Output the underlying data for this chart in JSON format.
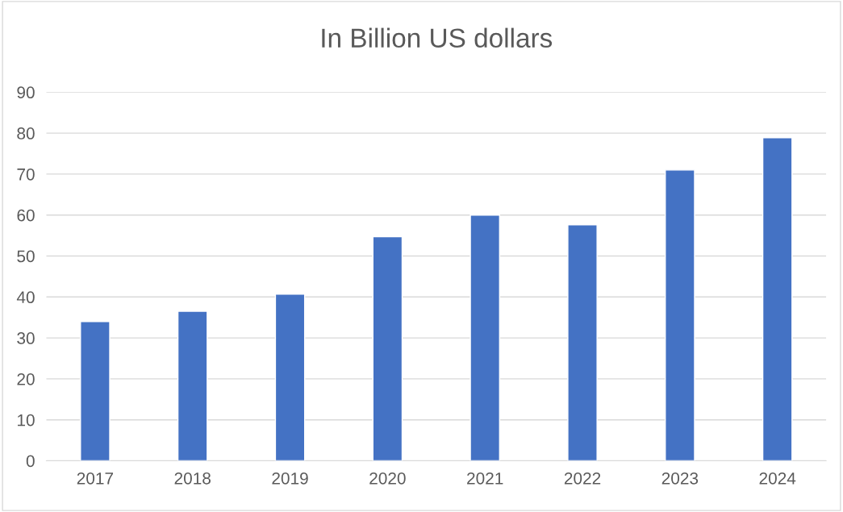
{
  "chart_data": {
    "type": "bar",
    "title": "In Billion US dollars",
    "categories": [
      "2017",
      "2018",
      "2019",
      "2020",
      "2021",
      "2022",
      "2023",
      "2024"
    ],
    "values": [
      34,
      36.5,
      40.7,
      54.7,
      60,
      57.6,
      71,
      78.9
    ],
    "color": "#4472c4",
    "ylim": [
      0,
      90
    ],
    "yticks": [
      0,
      10,
      20,
      30,
      40,
      50,
      60,
      70,
      80,
      90
    ],
    "grid": "y"
  }
}
